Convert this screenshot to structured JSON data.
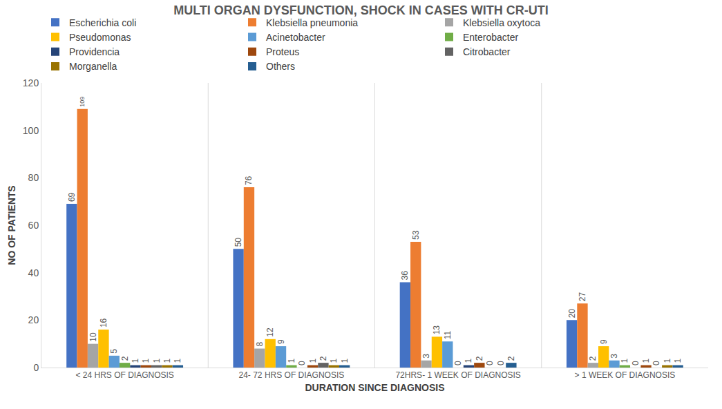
{
  "chart_data": {
    "type": "bar",
    "title": "MULTI ORGAN DYSFUNCTION, SHOCK IN CASES WITH CR-UTI",
    "x_label": "DURATION SINCE DIAGNOSIS",
    "y_label": "NO OF PATIENTS",
    "categories": [
      "< 24 HRS OF DIAGNOSIS",
      "24- 72 HRS OF DIAGNOSIS",
      "72HRS- 1 WEEK OF DIAGNOSIS",
      "> 1 WEEK OF DIAGNOSIS"
    ],
    "series": [
      {
        "name": "Escherichia coli",
        "color": "#4472c4",
        "values": [
          69,
          50,
          36,
          20
        ]
      },
      {
        "name": "Klebsiella pneumonia",
        "color": "#ed7d31",
        "values": [
          109,
          76,
          53,
          27
        ]
      },
      {
        "name": "Klebsiella oxytoca",
        "color": "#a5a5a5",
        "values": [
          10,
          8,
          3,
          2
        ]
      },
      {
        "name": "Pseudomonas",
        "color": "#ffc000",
        "values": [
          16,
          12,
          13,
          9
        ]
      },
      {
        "name": "Acinetobacter",
        "color": "#5b9bd5",
        "values": [
          5,
          9,
          11,
          3
        ]
      },
      {
        "name": "Enterobacter",
        "color": "#70ad47",
        "values": [
          2,
          1,
          0,
          1
        ]
      },
      {
        "name": "Providencia",
        "color": "#264478",
        "values": [
          1,
          0,
          1,
          0
        ]
      },
      {
        "name": "Proteus",
        "color": "#9e480e",
        "values": [
          1,
          1,
          2,
          1
        ]
      },
      {
        "name": "Citrobacter",
        "color": "#636363",
        "values": [
          1,
          2,
          0,
          0
        ]
      },
      {
        "name": "Morganella",
        "color": "#997300",
        "values": [
          1,
          1,
          0,
          1
        ]
      },
      {
        "name": "Others",
        "color": "#255e91",
        "values": [
          1,
          1,
          2,
          1
        ]
      }
    ],
    "ylim": [
      0,
      120
    ],
    "yticks": [
      0,
      20,
      40,
      60,
      80,
      100,
      120
    ],
    "grid": false,
    "legend": "top",
    "data_labels": true
  }
}
